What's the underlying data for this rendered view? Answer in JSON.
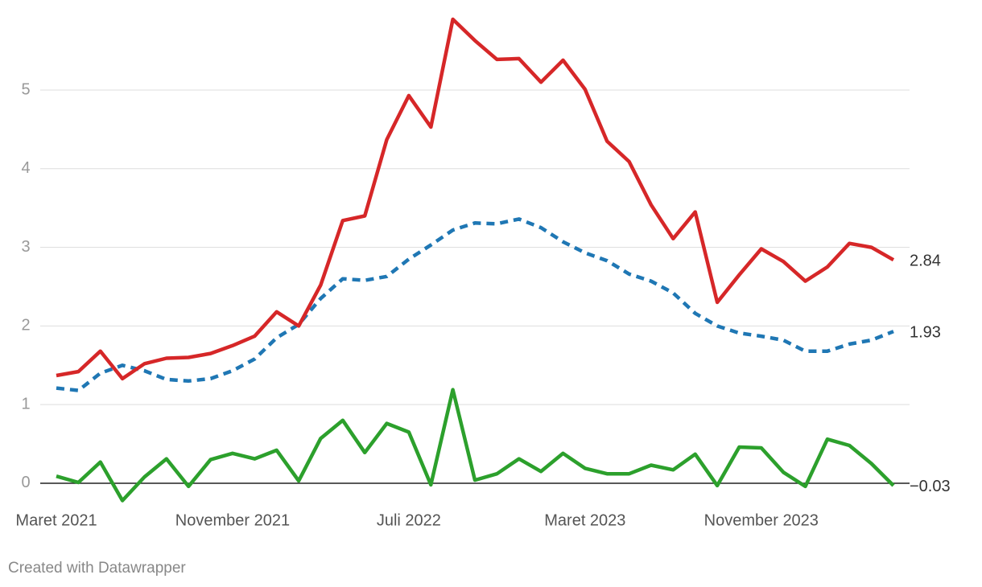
{
  "chart_data": {
    "type": "line",
    "categories": [
      "Maret 2021",
      null,
      null,
      null,
      null,
      null,
      null,
      null,
      "November 2021",
      null,
      null,
      null,
      null,
      null,
      null,
      null,
      "Juli 2022",
      null,
      null,
      null,
      null,
      null,
      null,
      null,
      "Maret 2023",
      null,
      null,
      null,
      null,
      null,
      null,
      null,
      "November 2023",
      null,
      null,
      null,
      null,
      null,
      null
    ],
    "series": [
      {
        "color": "#1f77b4",
        "dashed": true,
        "last_label": "1.93",
        "values": [
          1.21,
          1.18,
          1.4,
          1.5,
          1.43,
          1.32,
          1.3,
          1.33,
          1.43,
          1.58,
          1.85,
          2.02,
          2.35,
          2.6,
          2.58,
          2.63,
          2.85,
          3.03,
          3.22,
          3.31,
          3.3,
          3.36,
          3.25,
          3.07,
          2.93,
          2.83,
          2.66,
          2.57,
          2.42,
          2.16,
          2.0,
          1.91,
          1.87,
          1.82,
          1.68,
          1.68,
          1.77,
          1.82,
          1.93
        ]
      },
      {
        "color": "#2ca02c",
        "dashed": false,
        "last_label": "−0.03",
        "values": [
          0.09,
          0.01,
          0.27,
          -0.22,
          0.08,
          0.31,
          -0.04,
          0.3,
          0.38,
          0.31,
          0.42,
          0.03,
          0.57,
          0.8,
          0.39,
          0.76,
          0.65,
          -0.02,
          1.19,
          0.04,
          0.12,
          0.31,
          0.15,
          0.38,
          0.19,
          0.12,
          0.12,
          0.23,
          0.17,
          0.37,
          -0.03,
          0.46,
          0.45,
          0.14,
          -0.04,
          0.56,
          0.48,
          0.25,
          -0.03
        ]
      },
      {
        "color": "#d62728",
        "dashed": false,
        "last_label": "2.84",
        "values": [
          1.37,
          1.42,
          1.68,
          1.33,
          1.52,
          1.59,
          1.6,
          1.65,
          1.75,
          1.87,
          2.18,
          2.0,
          2.52,
          3.34,
          3.4,
          4.37,
          4.93,
          4.53,
          5.9,
          5.63,
          5.39,
          5.4,
          5.1,
          5.38,
          5.01,
          4.35,
          4.09,
          3.54,
          3.11,
          3.45,
          2.3,
          2.65,
          2.98,
          2.82,
          2.57,
          2.75,
          3.05,
          3.0,
          2.84
        ]
      }
    ],
    "ylim": [
      -0.3,
      5.9
    ],
    "yticks": [
      0,
      1,
      2,
      3,
      4,
      5
    ],
    "grid": true,
    "footer": "Created with Datawrapper"
  }
}
